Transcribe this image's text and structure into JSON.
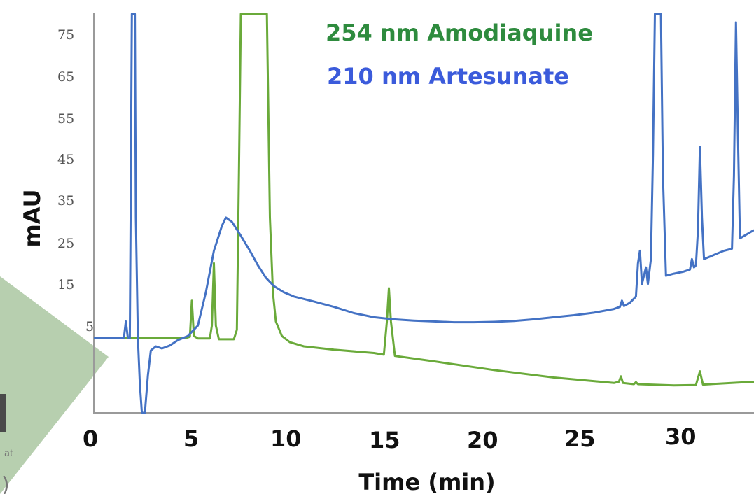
{
  "chart_data": {
    "type": "line",
    "xlabel": "Time (min)",
    "ylabel": "mAU",
    "xlim": [
      0,
      33
    ],
    "ylim": [
      -17,
      79
    ],
    "x_ticks": [
      "0",
      "5",
      "10",
      "15",
      "20",
      "25",
      "30"
    ],
    "y_ticks": [
      "75",
      "65",
      "55",
      "45",
      "35",
      "25",
      "15",
      "5"
    ],
    "grid": false,
    "legend_placement": "top-center",
    "series": [
      {
        "name": "254 nm Amodiaquine",
        "color": "#6aaa3a",
        "legend_color": "#2e8b3e",
        "points": [
          [
            0,
            1
          ],
          [
            4.6,
            1
          ],
          [
            4.8,
            1.3
          ],
          [
            4.9,
            10
          ],
          [
            5.0,
            1.5
          ],
          [
            5.2,
            0.9
          ],
          [
            5.8,
            0.9
          ],
          [
            5.9,
            4
          ],
          [
            6.0,
            19
          ],
          [
            6.1,
            4
          ],
          [
            6.25,
            0.7
          ],
          [
            7.0,
            0.7
          ],
          [
            7.15,
            3
          ],
          [
            7.25,
            40
          ],
          [
            7.35,
            79
          ],
          [
            8.65,
            79
          ],
          [
            8.8,
            30
          ],
          [
            8.95,
            12
          ],
          [
            9.1,
            5
          ],
          [
            9.4,
            1.5
          ],
          [
            9.8,
            0
          ],
          [
            10.5,
            -1
          ],
          [
            12,
            -1.8
          ],
          [
            14,
            -2.6
          ],
          [
            14.5,
            -3
          ],
          [
            14.65,
            5
          ],
          [
            14.75,
            13
          ],
          [
            14.85,
            5
          ],
          [
            15.05,
            -3.3
          ],
          [
            17,
            -4.6
          ],
          [
            20,
            -6.7
          ],
          [
            23,
            -8.5
          ],
          [
            26,
            -9.8
          ],
          [
            26.25,
            -9.5
          ],
          [
            26.35,
            -8.2
          ],
          [
            26.45,
            -9.8
          ],
          [
            27,
            -10.1
          ],
          [
            27.1,
            -9.6
          ],
          [
            27.2,
            -10.1
          ],
          [
            29,
            -10.4
          ],
          [
            30.1,
            -10.3
          ],
          [
            30.3,
            -7
          ],
          [
            30.45,
            -10.2
          ],
          [
            33,
            -9.5
          ]
        ]
      },
      {
        "name": "210 nm Artesunate",
        "color": "#4472c4",
        "legend_color": "#3b5bdb",
        "points": [
          [
            0,
            1
          ],
          [
            1.5,
            1
          ],
          [
            1.6,
            5
          ],
          [
            1.7,
            1
          ],
          [
            1.8,
            1
          ],
          [
            1.85,
            40
          ],
          [
            1.9,
            79
          ],
          [
            2.05,
            79
          ],
          [
            2.1,
            30
          ],
          [
            2.2,
            1
          ],
          [
            2.3,
            -10
          ],
          [
            2.4,
            -17
          ],
          [
            2.55,
            -17
          ],
          [
            2.7,
            -8
          ],
          [
            2.85,
            -2
          ],
          [
            3.1,
            -1
          ],
          [
            3.4,
            -1.5
          ],
          [
            3.8,
            -0.8
          ],
          [
            4.2,
            0.5
          ],
          [
            4.7,
            1.5
          ],
          [
            5.2,
            4
          ],
          [
            5.6,
            12
          ],
          [
            6.0,
            22
          ],
          [
            6.4,
            28
          ],
          [
            6.6,
            30
          ],
          [
            6.9,
            29
          ],
          [
            7.3,
            26
          ],
          [
            7.8,
            22
          ],
          [
            8.2,
            18.5
          ],
          [
            8.6,
            15.5
          ],
          [
            9.0,
            13.5
          ],
          [
            9.5,
            12
          ],
          [
            10,
            11
          ],
          [
            11,
            9.8
          ],
          [
            12,
            8.5
          ],
          [
            13,
            7
          ],
          [
            14,
            6
          ],
          [
            15,
            5.5
          ],
          [
            16,
            5.2
          ],
          [
            17,
            5
          ],
          [
            18,
            4.8
          ],
          [
            19,
            4.8
          ],
          [
            20,
            4.9
          ],
          [
            21,
            5.1
          ],
          [
            22,
            5.5
          ],
          [
            23,
            6
          ],
          [
            24,
            6.5
          ],
          [
            25,
            7.1
          ],
          [
            26,
            8
          ],
          [
            26.3,
            8.5
          ],
          [
            26.4,
            10
          ],
          [
            26.5,
            8.7
          ],
          [
            26.8,
            9.5
          ],
          [
            27.1,
            11
          ],
          [
            27.2,
            19
          ],
          [
            27.3,
            22
          ],
          [
            27.4,
            14
          ],
          [
            27.5,
            16
          ],
          [
            27.6,
            18
          ],
          [
            27.7,
            14
          ],
          [
            27.85,
            20
          ],
          [
            27.95,
            45
          ],
          [
            28.05,
            79
          ],
          [
            28.35,
            79
          ],
          [
            28.45,
            40
          ],
          [
            28.6,
            16
          ],
          [
            29.0,
            16.5
          ],
          [
            29.5,
            17
          ],
          [
            29.8,
            17.5
          ],
          [
            29.9,
            20
          ],
          [
            30.0,
            18
          ],
          [
            30.1,
            18.5
          ],
          [
            30.2,
            27
          ],
          [
            30.3,
            47
          ],
          [
            30.4,
            30
          ],
          [
            30.5,
            20
          ],
          [
            31,
            21
          ],
          [
            31.5,
            22
          ],
          [
            31.9,
            22.5
          ],
          [
            32.0,
            40
          ],
          [
            32.1,
            77
          ],
          [
            32.2,
            50
          ],
          [
            32.3,
            25
          ],
          [
            33,
            27
          ]
        ]
      }
    ]
  }
}
